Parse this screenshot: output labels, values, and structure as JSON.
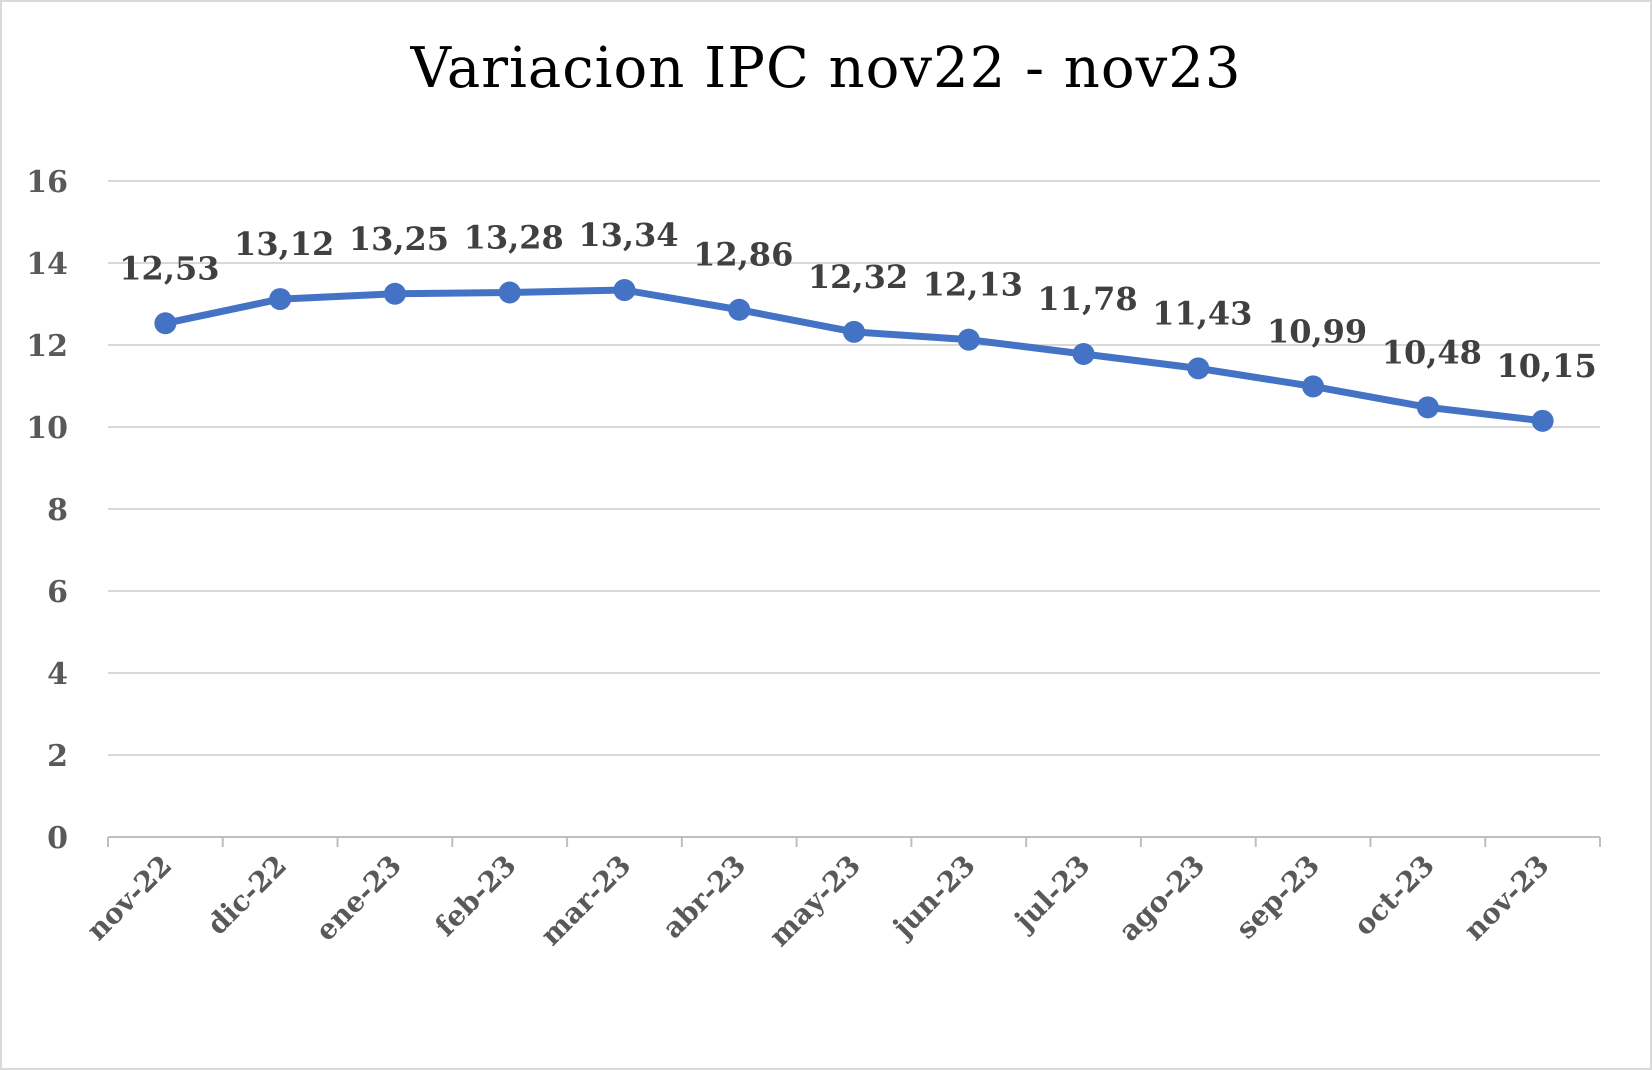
{
  "chart_data": {
    "type": "line",
    "title": "Variacion IPC nov22 - nov23",
    "xlabel": "",
    "ylabel": "",
    "categories": [
      "nov-22",
      "dic-22",
      "ene-23",
      "feb-23",
      "mar-23",
      "abr-23",
      "may-23",
      "jun-23",
      "jul-23",
      "ago-23",
      "sep-23",
      "oct-23",
      "nov-23"
    ],
    "series": [
      {
        "values": [
          12.53,
          13.12,
          13.25,
          13.28,
          13.34,
          12.86,
          12.32,
          12.13,
          11.78,
          11.43,
          10.99,
          10.48,
          10.15
        ],
        "data_labels": [
          "12,53",
          "13,12",
          "13,25",
          "13,28",
          "13,34",
          "12,86",
          "12,32",
          "12,13",
          "11,78",
          "11,43",
          "10,99",
          "10,48",
          "10,15"
        ],
        "color": "#4472c4"
      }
    ],
    "ylim": [
      0,
      16
    ],
    "yticks": [
      0,
      2,
      4,
      6,
      8,
      10,
      12,
      14,
      16
    ],
    "grid": true,
    "legend": "none"
  }
}
